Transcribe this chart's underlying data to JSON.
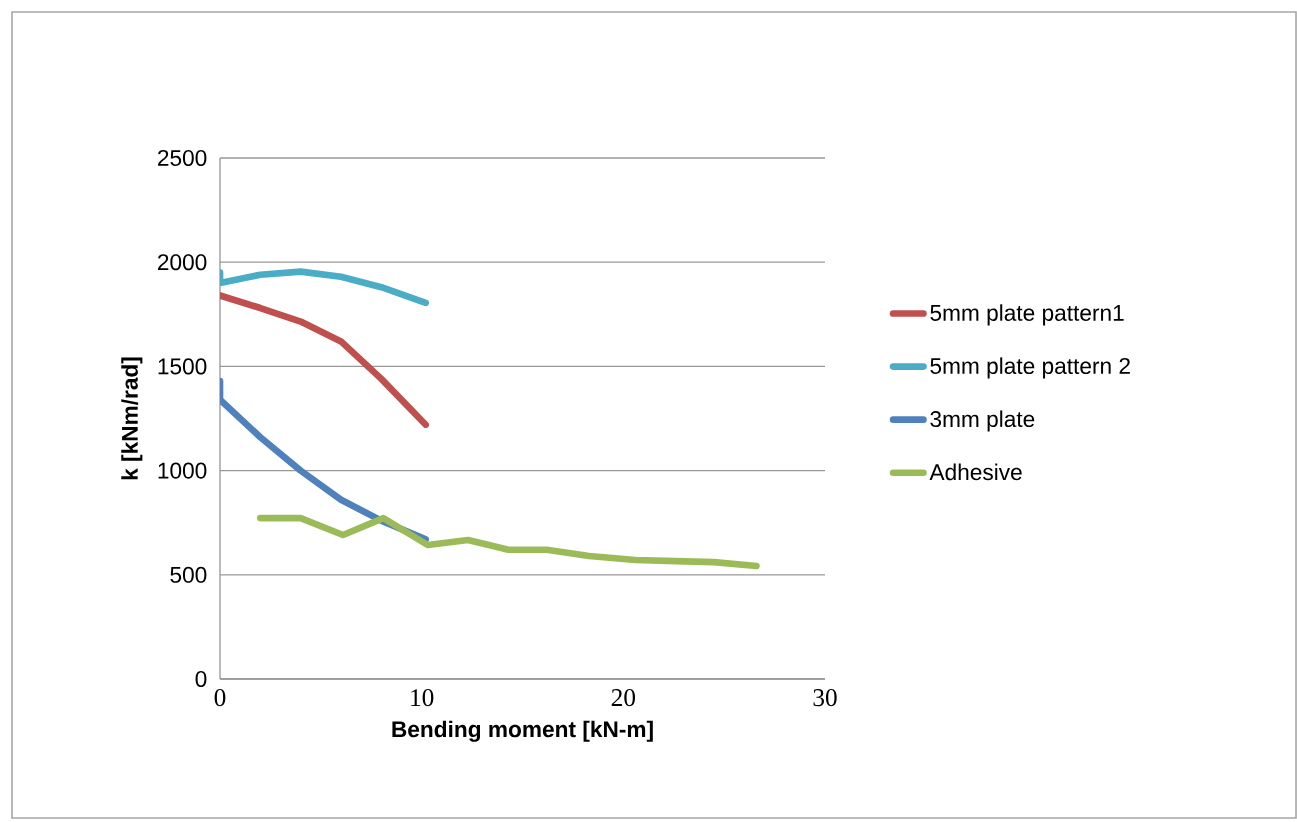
{
  "chart_data": {
    "type": "line",
    "xlabel": "Bending moment [kN-m]",
    "ylabel": "k [kNm/rad]",
    "xlim": [
      0,
      30
    ],
    "xticks": [
      0,
      10,
      20,
      30
    ],
    "ylim": [
      0,
      2500
    ],
    "yticks": [
      0,
      500,
      1000,
      1500,
      2000,
      2500
    ],
    "grid": "y",
    "legend": "right",
    "marker": "none",
    "line_style": "solid",
    "series": [
      {
        "name": "5mm plate pattern1",
        "color": "#c0504d",
        "x": [
          0,
          2,
          4,
          6,
          8,
          10.2
        ],
        "values": [
          1840,
          1780,
          1715,
          1620,
          1440,
          1220
        ]
      },
      {
        "name": "5mm plate pattern 2",
        "color": "#4bacc6",
        "x": [
          0,
          0,
          2,
          4,
          6,
          8,
          10.2
        ],
        "values": [
          1950,
          1900,
          1940,
          1955,
          1930,
          1880,
          1805
        ]
      },
      {
        "name": "3mm plate",
        "color": "#4f81bd",
        "x": [
          0,
          0,
          2,
          4,
          6,
          8,
          10.2
        ],
        "values": [
          1430,
          1340,
          1160,
          1000,
          860,
          760,
          670
        ]
      },
      {
        "name": "Adhesive",
        "color": "#9bbb59",
        "x": [
          2,
          4,
          6.1,
          8.1,
          10.3,
          12.3,
          14.3,
          16.2,
          18.3,
          20.6,
          22.6,
          24.5,
          26.6
        ],
        "values": [
          772,
          772,
          691,
          772,
          643,
          667,
          620,
          620,
          590,
          571,
          566,
          561,
          542
        ]
      }
    ]
  }
}
